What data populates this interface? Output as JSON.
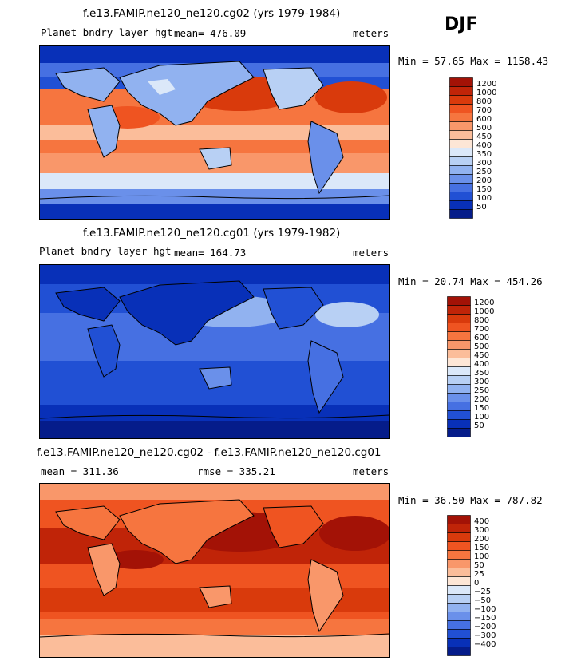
{
  "season": "DJF",
  "panels": [
    {
      "title": "f.e13.FAMIP.ne120_ne120.cg02 (yrs 1979-1984)",
      "left_label": "Planet bndry layer hgt",
      "center_label": "mean= 476.09",
      "right_label": "meters",
      "minmax": "Min =  57.65 Max = 1158.43",
      "colorbar": {
        "levels": [
          "1200",
          "1000",
          "800",
          "700",
          "600",
          "500",
          "450",
          "400",
          "350",
          "300",
          "250",
          "200",
          "150",
          "100",
          "50"
        ],
        "colors": [
          "#a31206",
          "#c02408",
          "#d93a0c",
          "#ef5421",
          "#f6753f",
          "#f9976a",
          "#fbbd9a",
          "#fde6d6",
          "#dbe8f9",
          "#b8d0f4",
          "#91b2f0",
          "#6a90ea",
          "#4670e2",
          "#2150d4",
          "#0830b8",
          "#051c8a"
        ]
      }
    },
    {
      "title": "f.e13.FAMIP.ne120_ne120.cg01 (yrs 1979-1982)",
      "left_label": "Planet bndry layer hgt",
      "center_label": "mean= 164.73",
      "right_label": "meters",
      "minmax": "Min =  20.74 Max = 454.26",
      "colorbar": {
        "levels": [
          "1200",
          "1000",
          "800",
          "700",
          "600",
          "500",
          "450",
          "400",
          "350",
          "300",
          "250",
          "200",
          "150",
          "100",
          "50"
        ],
        "colors": [
          "#a31206",
          "#c02408",
          "#d93a0c",
          "#ef5421",
          "#f6753f",
          "#f9976a",
          "#fbbd9a",
          "#fde6d6",
          "#dbe8f9",
          "#b8d0f4",
          "#91b2f0",
          "#6a90ea",
          "#4670e2",
          "#2150d4",
          "#0830b8",
          "#051c8a"
        ]
      }
    },
    {
      "title": "f.e13.FAMIP.ne120_ne120.cg02 - f.e13.FAMIP.ne120_ne120.cg01",
      "left_label": "mean = 311.36",
      "center_label": "rmse = 335.21",
      "right_label": "meters",
      "minmax": "Min =  36.50 Max = 787.82",
      "colorbar": {
        "levels": [
          "400",
          "300",
          "200",
          "150",
          "100",
          "50",
          "25",
          "0",
          "−25",
          "−50",
          "−100",
          "−150",
          "−200",
          "−300",
          "−400"
        ],
        "colors": [
          "#a31206",
          "#c02408",
          "#d93a0c",
          "#ef5421",
          "#f6753f",
          "#f9976a",
          "#fbbd9a",
          "#fde6d6",
          "#dbe8f9",
          "#b8d0f4",
          "#91b2f0",
          "#6a90ea",
          "#4670e2",
          "#2150d4",
          "#0830b8",
          "#051c8a"
        ]
      }
    }
  ]
}
